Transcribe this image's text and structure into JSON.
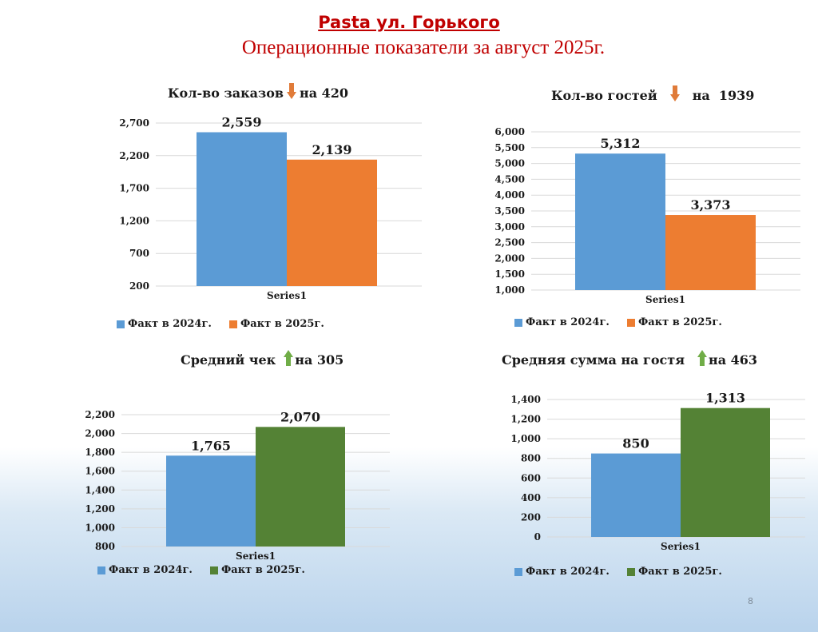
{
  "slide": {
    "title": "Pasta ул. Горького",
    "subtitle": "Операционные показатели за август 2025г.",
    "page_number": "8"
  },
  "colors": {
    "y2024": "#5b9bd5",
    "y2025_orange": "#ed7d31",
    "y2025_green": "#548235",
    "arrow_down": "#e07b39",
    "arrow_up": "#70ad47",
    "title_red": "#c00000",
    "grid": "#d9d9d9"
  },
  "chart_data": [
    {
      "id": "orders",
      "type": "bar",
      "title_text": "Кол-во заказов",
      "delta_direction": "down",
      "delta_icon": "arrow-down-icon",
      "delta_text": "на 420",
      "categories": [
        "Series1"
      ],
      "series": [
        {
          "name": "Факт в 2024г.",
          "values": [
            2559
          ],
          "label": "2,559",
          "color": "#5b9bd5"
        },
        {
          "name": "Факт в 2025г.",
          "values": [
            2139
          ],
          "label": "2,139",
          "color": "#ed7d31"
        }
      ],
      "yticks": [
        "200",
        "700",
        "1,200",
        "1,700",
        "2,200",
        "2,700"
      ],
      "ylim": [
        200,
        2700
      ],
      "grid": true,
      "legend": "bottom"
    },
    {
      "id": "guests",
      "type": "bar",
      "title_text": "Кол-во гостей",
      "delta_direction": "down",
      "delta_icon": "arrow-down-icon",
      "delta_text": "на  1939",
      "categories": [
        "Series1"
      ],
      "series": [
        {
          "name": "Факт в 2024г.",
          "values": [
            5312
          ],
          "label": "5,312",
          "color": "#5b9bd5"
        },
        {
          "name": "Факт в 2025г.",
          "values": [
            3373
          ],
          "label": "3,373",
          "color": "#ed7d31"
        }
      ],
      "yticks": [
        "1,000",
        "1,500",
        "2,000",
        "2,500",
        "3,000",
        "3,500",
        "4,000",
        "4,500",
        "5,000",
        "5,500",
        "6,000"
      ],
      "ylim": [
        1000,
        6000
      ],
      "grid": true,
      "legend": "bottom"
    },
    {
      "id": "avg-check",
      "type": "bar",
      "title_text": "Средний чек",
      "delta_direction": "up",
      "delta_icon": "arrow-up-icon",
      "delta_text": "на 305",
      "categories": [
        "Series1"
      ],
      "series": [
        {
          "name": "Факт в 2024г.",
          "values": [
            1765
          ],
          "label": "1,765",
          "color": "#5b9bd5"
        },
        {
          "name": "Факт в 2025г.",
          "values": [
            2070
          ],
          "label": "2,070",
          "color": "#548235"
        }
      ],
      "yticks": [
        "800",
        "1,000",
        "1,200",
        "1,400",
        "1,600",
        "1,800",
        "2,000",
        "2,200"
      ],
      "ylim": [
        800,
        2200
      ],
      "grid": true,
      "legend": "bottom"
    },
    {
      "id": "avg-guest",
      "type": "bar",
      "title_text": "Средняя сумма на гостя",
      "delta_direction": "up",
      "delta_icon": "arrow-up-icon",
      "delta_text": "на 463",
      "categories": [
        "Series1"
      ],
      "series": [
        {
          "name": "Факт в 2024г.",
          "values": [
            850
          ],
          "label": "850",
          "color": "#5b9bd5"
        },
        {
          "name": "Факт в 2025г.",
          "values": [
            1313
          ],
          "label": "1,313",
          "color": "#548235"
        }
      ],
      "yticks": [
        "0",
        "200",
        "400",
        "600",
        "800",
        "1,000",
        "1,200",
        "1,400"
      ],
      "ylim": [
        0,
        1400
      ],
      "grid": true,
      "legend": "bottom"
    }
  ]
}
